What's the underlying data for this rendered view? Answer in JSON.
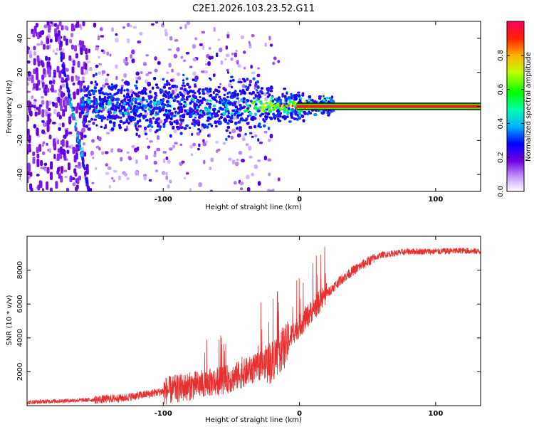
{
  "title": "C2E1.2026.103.23.52.G11",
  "chart_data": [
    {
      "type": "heatmap",
      "name": "spectrogram",
      "xlabel": "Height of straight line (km)",
      "ylabel": "Frequency (Hz)",
      "xlim": [
        -200,
        133
      ],
      "ylim": [
        -50,
        50
      ],
      "xticks": [
        -100,
        0,
        100
      ],
      "xtick_labels": [
        "-100",
        "0",
        "100"
      ],
      "yticks": [
        -40,
        -20,
        0,
        20,
        40
      ],
      "ytick_labels": [
        "-40",
        "-20",
        "0",
        "20",
        "40"
      ],
      "line_start_km": 10,
      "colorbar": {
        "label": "Normalized spectral amplitude",
        "range": [
          0,
          1
        ],
        "ticks": [
          0.0,
          0.2,
          0.4,
          0.6,
          0.8
        ],
        "tick_labels": [
          "0.0",
          "0.2",
          "0.4",
          "0.6",
          "0.8"
        ]
      }
    },
    {
      "type": "line",
      "name": "snr",
      "xlabel": "Height of straight line (km)",
      "ylabel": "SNR (10 * v/v)",
      "xlim": [
        -200,
        133
      ],
      "ylim": [
        0,
        10000
      ],
      "xticks": [
        -100,
        0,
        100
      ],
      "xtick_labels": [
        "-100",
        "0",
        "100"
      ],
      "yticks": [
        2000,
        4000,
        6000,
        8000
      ],
      "ytick_labels": [
        "2000",
        "4000",
        "6000",
        "8000"
      ],
      "series_color": "#e83030",
      "trend": {
        "x": [
          -200,
          -170,
          -150,
          -130,
          -110,
          -90,
          -70,
          -50,
          -30,
          -20,
          -15,
          -10,
          -5,
          0,
          10,
          20,
          30,
          40,
          50,
          60,
          80,
          100,
          120,
          133
        ],
        "y": [
          200,
          300,
          350,
          450,
          700,
          1000,
          1300,
          1600,
          2300,
          2600,
          3200,
          3500,
          4300,
          4700,
          5700,
          6600,
          7400,
          8000,
          8500,
          8900,
          9100,
          9100,
          9150,
          9100
        ]
      }
    }
  ]
}
